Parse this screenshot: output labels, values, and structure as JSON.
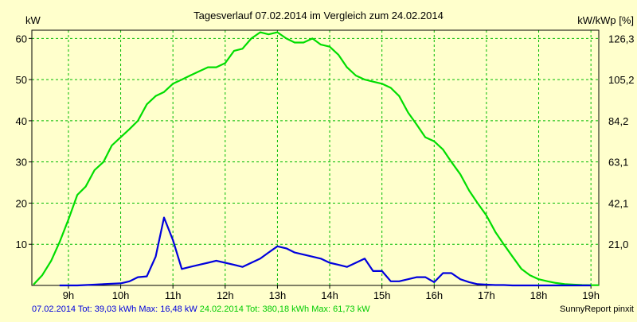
{
  "chart_data": {
    "type": "line",
    "title": "Tagesverlauf 07.02.2014 im Vergleich zum 24.02.2014",
    "ylabel_left": "kW",
    "ylabel_right": "kW/kWp [%]",
    "ylim": [
      0,
      62
    ],
    "xlim": [
      8.3,
      19.15
    ],
    "y_ticks": [
      10,
      20,
      30,
      40,
      50,
      60
    ],
    "y_tick_labels": [
      "10",
      "20",
      "30",
      "40",
      "50",
      "60"
    ],
    "y2_ticks": [
      21.0,
      42.1,
      63.1,
      84.2,
      105.2,
      126.3
    ],
    "y2_tick_labels": [
      "21,0",
      "42,1",
      "63,1",
      "84,2",
      "105,2",
      "126,3"
    ],
    "x_ticks": [
      9,
      10,
      11,
      12,
      13,
      14,
      15,
      16,
      17,
      18,
      19
    ],
    "x_tick_labels": [
      "9h",
      "10h",
      "11h",
      "12h",
      "13h",
      "14h",
      "15h",
      "16h",
      "17h",
      "18h",
      "19h"
    ],
    "grid": true,
    "series": [
      {
        "name": "24.02.2014",
        "color": "#00dd00",
        "x": [
          8.33,
          8.5,
          8.67,
          8.83,
          9.0,
          9.17,
          9.33,
          9.5,
          9.67,
          9.83,
          10.0,
          10.17,
          10.33,
          10.5,
          10.67,
          10.83,
          11.0,
          11.17,
          11.33,
          11.5,
          11.67,
          11.83,
          12.0,
          12.17,
          12.33,
          12.5,
          12.67,
          12.83,
          13.0,
          13.17,
          13.33,
          13.5,
          13.67,
          13.83,
          14.0,
          14.17,
          14.33,
          14.5,
          14.67,
          14.83,
          15.0,
          15.17,
          15.33,
          15.5,
          15.67,
          15.83,
          16.0,
          16.17,
          16.33,
          16.5,
          16.67,
          16.83,
          17.0,
          17.17,
          17.33,
          17.5,
          17.67,
          17.83,
          18.0,
          18.17,
          18.33,
          18.5,
          18.67,
          18.83,
          19.0,
          19.15
        ],
        "values": [
          0.2,
          2.5,
          6,
          10.5,
          16,
          22,
          24,
          28,
          30,
          34,
          36,
          38,
          40,
          44,
          46,
          47,
          49,
          50,
          51,
          52,
          53,
          53,
          54,
          57,
          57.5,
          60,
          61.5,
          61,
          61.5,
          60,
          59,
          59,
          60,
          58.5,
          58,
          56,
          53,
          51,
          50,
          49.5,
          49,
          48,
          46,
          42,
          39,
          36,
          35,
          33,
          30,
          27,
          23,
          20,
          17,
          13,
          10,
          7,
          4,
          2.5,
          1.5,
          1,
          0.6,
          0.3,
          0.2,
          0.1,
          0.05,
          0.05
        ]
      },
      {
        "name": "07.02.2014",
        "color": "#0000dd",
        "x": [
          8.83,
          9.0,
          9.17,
          9.33,
          9.5,
          9.67,
          9.83,
          10.0,
          10.17,
          10.33,
          10.5,
          10.67,
          10.83,
          11.0,
          11.17,
          11.33,
          11.5,
          11.67,
          11.83,
          12.0,
          12.17,
          12.33,
          12.5,
          12.67,
          12.83,
          13.0,
          13.17,
          13.33,
          13.5,
          13.67,
          13.83,
          14.0,
          14.17,
          14.33,
          14.5,
          14.67,
          14.83,
          15.0,
          15.17,
          15.33,
          15.5,
          15.67,
          15.83,
          16.0,
          16.17,
          16.33,
          16.5,
          16.67,
          16.83,
          17.0,
          17.17,
          17.33,
          17.5,
          17.67,
          17.83,
          18.0,
          18.17,
          18.33,
          18.5,
          18.67,
          18.83,
          19.0
        ],
        "values": [
          0,
          0,
          0,
          0.1,
          0.2,
          0.3,
          0.4,
          0.5,
          1,
          2,
          2.2,
          7,
          16.5,
          11,
          4,
          4.5,
          5,
          5.5,
          6,
          5.5,
          5,
          4.5,
          5.5,
          6.5,
          8,
          9.5,
          9,
          8,
          7.5,
          7,
          6.5,
          5.5,
          5,
          4.5,
          5.5,
          6.5,
          3.5,
          3.5,
          1,
          1,
          1.5,
          2,
          2,
          0.8,
          3,
          3,
          1.5,
          0.8,
          0.3,
          0.2,
          0.1,
          0.1,
          0,
          0,
          0,
          0,
          0,
          0,
          0,
          0,
          0,
          0
        ]
      }
    ],
    "footer": {
      "series1_text": "07.02.2014 Tot: 39,03 kWh Max: 16,48 kW",
      "series2_text": "24.02.2014 Tot: 380,18 kWh Max: 61,73 kW",
      "series1_color": "#0000dd",
      "series2_color": "#00cc00"
    },
    "credit": "SunnyReport pinxit"
  },
  "colors": {
    "background": "#ffffcc",
    "grid": "#00bb00",
    "axis": "#000000"
  }
}
